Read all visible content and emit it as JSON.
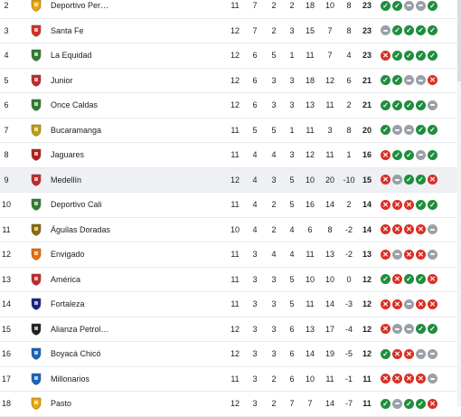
{
  "rows": [
    {
      "pos": "2",
      "team": "Deportivo Per…",
      "mp": "11",
      "w": "7",
      "d": "2",
      "l": "2",
      "gf": "18",
      "ga": "10",
      "gd": "8",
      "pts": "23",
      "form": [
        "W",
        "W",
        "D",
        "D",
        "W"
      ],
      "crest": "#f0a500",
      "highlight": false
    },
    {
      "pos": "3",
      "team": "Santa Fe",
      "mp": "12",
      "w": "7",
      "d": "2",
      "l": "3",
      "gf": "15",
      "ga": "7",
      "gd": "8",
      "pts": "23",
      "form": [
        "D",
        "W",
        "W",
        "W",
        "W"
      ],
      "crest": "#d93025",
      "highlight": false
    },
    {
      "pos": "4",
      "team": "La Equidad",
      "mp": "12",
      "w": "6",
      "d": "5",
      "l": "1",
      "gf": "11",
      "ga": "7",
      "gd": "4",
      "pts": "23",
      "form": [
        "L",
        "W",
        "W",
        "W",
        "W"
      ],
      "crest": "#2e7d32",
      "highlight": false
    },
    {
      "pos": "5",
      "team": "Junior",
      "mp": "12",
      "w": "6",
      "d": "3",
      "l": "3",
      "gf": "18",
      "ga": "12",
      "gd": "6",
      "pts": "21",
      "form": [
        "W",
        "W",
        "D",
        "D",
        "L"
      ],
      "crest": "#c62828",
      "highlight": false
    },
    {
      "pos": "6",
      "team": "Once Caldas",
      "mp": "12",
      "w": "6",
      "d": "3",
      "l": "3",
      "gf": "13",
      "ga": "11",
      "gd": "2",
      "pts": "21",
      "form": [
        "W",
        "W",
        "W",
        "W",
        "D"
      ],
      "crest": "#2e7d32",
      "highlight": false
    },
    {
      "pos": "7",
      "team": "Bucaramanga",
      "mp": "11",
      "w": "5",
      "d": "5",
      "l": "1",
      "gf": "11",
      "ga": "3",
      "gd": "8",
      "pts": "20",
      "form": [
        "W",
        "D",
        "D",
        "W",
        "W"
      ],
      "crest": "#c0a000",
      "highlight": false
    },
    {
      "pos": "8",
      "team": "Jaguares",
      "mp": "11",
      "w": "4",
      "d": "4",
      "l": "3",
      "gf": "12",
      "ga": "11",
      "gd": "1",
      "pts": "16",
      "form": [
        "L",
        "W",
        "W",
        "D",
        "W"
      ],
      "crest": "#b71c1c",
      "highlight": false
    },
    {
      "pos": "9",
      "team": "Medellín",
      "mp": "12",
      "w": "4",
      "d": "3",
      "l": "5",
      "gf": "10",
      "ga": "20",
      "gd": "-10",
      "pts": "15",
      "form": [
        "L",
        "D",
        "W",
        "W",
        "L"
      ],
      "crest": "#c62828",
      "highlight": true
    },
    {
      "pos": "10",
      "team": "Deportivo Cali",
      "mp": "11",
      "w": "4",
      "d": "2",
      "l": "5",
      "gf": "16",
      "ga": "14",
      "gd": "2",
      "pts": "14",
      "form": [
        "L",
        "L",
        "L",
        "W",
        "W"
      ],
      "crest": "#2e7d32",
      "highlight": false
    },
    {
      "pos": "11",
      "team": "Águilas Doradas",
      "mp": "10",
      "w": "4",
      "d": "2",
      "l": "4",
      "gf": "6",
      "ga": "8",
      "gd": "-2",
      "pts": "14",
      "form": [
        "L",
        "L",
        "L",
        "L",
        "D"
      ],
      "crest": "#8d6e00",
      "highlight": false
    },
    {
      "pos": "12",
      "team": "Envigado",
      "mp": "11",
      "w": "3",
      "d": "4",
      "l": "4",
      "gf": "11",
      "ga": "13",
      "gd": "-2",
      "pts": "13",
      "form": [
        "L",
        "D",
        "L",
        "L",
        "D"
      ],
      "crest": "#ef6c00",
      "highlight": false
    },
    {
      "pos": "13",
      "team": "América",
      "mp": "11",
      "w": "3",
      "d": "3",
      "l": "5",
      "gf": "10",
      "ga": "10",
      "gd": "0",
      "pts": "12",
      "form": [
        "W",
        "L",
        "W",
        "W",
        "L"
      ],
      "crest": "#c62828",
      "highlight": false
    },
    {
      "pos": "14",
      "team": "Fortaleza",
      "mp": "11",
      "w": "3",
      "d": "3",
      "l": "5",
      "gf": "11",
      "ga": "14",
      "gd": "-3",
      "pts": "12",
      "form": [
        "L",
        "L",
        "D",
        "L",
        "L"
      ],
      "crest": "#1a237e",
      "highlight": false
    },
    {
      "pos": "15",
      "team": "Alianza Petrol…",
      "mp": "12",
      "w": "3",
      "d": "3",
      "l": "6",
      "gf": "13",
      "ga": "17",
      "gd": "-4",
      "pts": "12",
      "form": [
        "L",
        "D",
        "D",
        "W",
        "W"
      ],
      "crest": "#212121",
      "highlight": false
    },
    {
      "pos": "16",
      "team": "Boyacá Chicó",
      "mp": "12",
      "w": "3",
      "d": "3",
      "l": "6",
      "gf": "14",
      "ga": "19",
      "gd": "-5",
      "pts": "12",
      "form": [
        "W",
        "L",
        "L",
        "D",
        "D"
      ],
      "crest": "#1565c0",
      "highlight": false
    },
    {
      "pos": "17",
      "team": "Millonarios",
      "mp": "11",
      "w": "3",
      "d": "2",
      "l": "6",
      "gf": "10",
      "ga": "11",
      "gd": "-1",
      "pts": "11",
      "form": [
        "L",
        "L",
        "L",
        "L",
        "D"
      ],
      "crest": "#1565c0",
      "highlight": false
    },
    {
      "pos": "18",
      "team": "Pasto",
      "mp": "12",
      "w": "3",
      "d": "2",
      "l": "7",
      "gf": "7",
      "ga": "14",
      "gd": "-7",
      "pts": "11",
      "form": [
        "W",
        "D",
        "W",
        "W",
        "L"
      ],
      "crest": "#f0a500",
      "highlight": false
    }
  ]
}
